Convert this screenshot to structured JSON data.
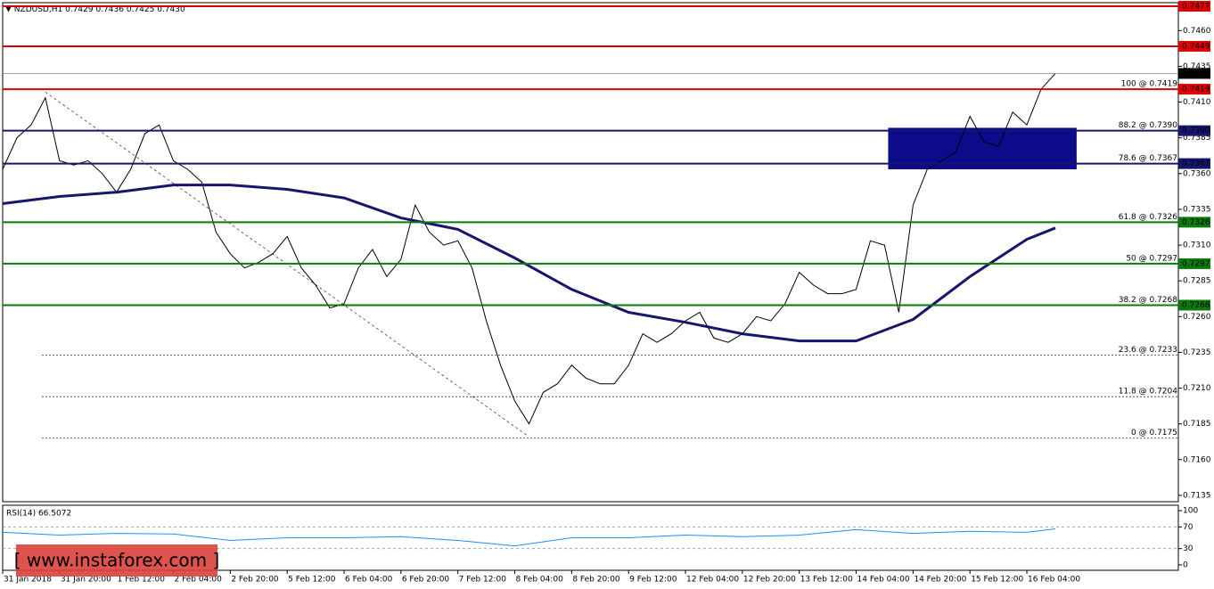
{
  "chart_data": [
    {
      "type": "line",
      "header": [
        "NZDUSD,H1",
        "0.7429",
        "0.7436",
        "0.7425",
        "0.7430"
      ],
      "xlim": [
        0,
        330.6
      ],
      "ylim": [
        0.71306,
        0.74795
      ],
      "xticks": [
        {
          "value": 0,
          "label": "31 Jan 2018"
        },
        {
          "value": 16,
          "label": "31 Jan 20:00"
        },
        {
          "value": 32,
          "label": "1 Feb 12:00"
        },
        {
          "value": 48,
          "label": "2 Feb 04:00"
        },
        {
          "value": 64,
          "label": "2 Feb 20:00"
        },
        {
          "value": 80,
          "label": "5 Feb 12:00"
        },
        {
          "value": 96,
          "label": "6 Feb 04:00"
        },
        {
          "value": 112,
          "label": "6 Feb 20:00"
        },
        {
          "value": 128,
          "label": "7 Feb 12:00"
        },
        {
          "value": 144,
          "label": "8 Feb 04:00"
        },
        {
          "value": 160,
          "label": "8 Feb 20:00"
        },
        {
          "value": 176,
          "label": "9 Feb 12:00"
        },
        {
          "value": 192,
          "label": "12 Feb 04:00"
        },
        {
          "value": 208,
          "label": "12 Feb 20:00"
        },
        {
          "value": 224,
          "label": "13 Feb 12:00"
        },
        {
          "value": 240,
          "label": "14 Feb 04:00"
        },
        {
          "value": 256,
          "label": "14 Feb 20:00"
        },
        {
          "value": 272,
          "label": "15 Feb 12:00"
        },
        {
          "value": 288,
          "label": "16 Feb 04:00"
        }
      ],
      "yticks": [
        {
          "value": 0.746,
          "label": "0.7460"
        },
        {
          "value": 0.7435,
          "label": "0.7435"
        },
        {
          "value": 0.741,
          "label": "0.7410"
        },
        {
          "value": 0.7385,
          "label": "0.7385"
        },
        {
          "value": 0.736,
          "label": "0.7360"
        },
        {
          "value": 0.7335,
          "label": "0.7335"
        },
        {
          "value": 0.731,
          "label": "0.7310"
        },
        {
          "value": 0.7285,
          "label": "0.7285"
        },
        {
          "value": 0.726,
          "label": "0.7260"
        },
        {
          "value": 0.7235,
          "label": "0.7235"
        },
        {
          "value": 0.721,
          "label": "0.7210"
        },
        {
          "value": 0.7185,
          "label": "0.7185"
        },
        {
          "value": 0.716,
          "label": "0.7160"
        },
        {
          "value": 0.7135,
          "label": "0.7135"
        }
      ],
      "series": [
        {
          "color": "#000000",
          "x": [
            0,
            4,
            8,
            12,
            16,
            20,
            24,
            28,
            32,
            36,
            40,
            44,
            48,
            52,
            56,
            60,
            64,
            68,
            72,
            76,
            80,
            84,
            88,
            92,
            96,
            100,
            104,
            108,
            112,
            116,
            120,
            124,
            128,
            132,
            136,
            140,
            144,
            148,
            152,
            156,
            160,
            164,
            168,
            172,
            176,
            180,
            184,
            188,
            192,
            196,
            200,
            204,
            208,
            212,
            216,
            220,
            224,
            228,
            232,
            236,
            240,
            244,
            248,
            252,
            256,
            260,
            264,
            268,
            272,
            276,
            280,
            284,
            288,
            292,
            296
          ],
          "values": [
            0.7363,
            0.7385,
            0.7394,
            0.7413,
            0.7369,
            0.7366,
            0.7369,
            0.736,
            0.7347,
            0.7363,
            0.7388,
            0.7394,
            0.7369,
            0.7363,
            0.7354,
            0.7319,
            0.7304,
            0.7294,
            0.7298,
            0.7304,
            0.7316,
            0.7294,
            0.7282,
            0.7266,
            0.7269,
            0.7294,
            0.7307,
            0.7288,
            0.73,
            0.7338,
            0.7319,
            0.731,
            0.7313,
            0.7294,
            0.7257,
            0.7226,
            0.7201,
            0.7185,
            0.7207,
            0.7213,
            0.7226,
            0.7217,
            0.7213,
            0.7213,
            0.7226,
            0.7248,
            0.7242,
            0.7248,
            0.7257,
            0.7263,
            0.7245,
            0.7242,
            0.7248,
            0.726,
            0.7257,
            0.7269,
            0.7291,
            0.7282,
            0.7276,
            0.7276,
            0.7279,
            0.7313,
            0.731,
            0.7263,
            0.7338,
            0.7363,
            0.7369,
            0.7375,
            0.74,
            0.7382,
            0.7379,
            0.7403,
            0.7394,
            0.7419,
            0.743
          ]
        },
        {
          "color": "#16166e",
          "x": [
            0,
            16,
            32,
            48,
            64,
            80,
            96,
            112,
            128,
            144,
            160,
            176,
            192,
            208,
            224,
            240,
            256,
            272,
            288,
            296
          ],
          "values": [
            0.7339,
            0.7344,
            0.7347,
            0.7352,
            0.7352,
            0.7349,
            0.7343,
            0.7329,
            0.7321,
            0.7301,
            0.7279,
            0.7263,
            0.7256,
            0.7248,
            0.7243,
            0.7243,
            0.7258,
            0.7288,
            0.7314,
            0.7322
          ]
        }
      ],
      "levels": [
        {
          "value": 0.7477,
          "label": "0.7477",
          "color": "#e00000"
        },
        {
          "value": 0.7449,
          "label": "0.7449",
          "color": "#e00000"
        },
        {
          "value": 0.743,
          "label": "0.7430",
          "color": "#000000"
        },
        {
          "value": 0.7419,
          "label": "0.7419",
          "color": "#e00000",
          "fib": "100 @ 0.7419"
        },
        {
          "value": 0.739,
          "label": "0.7390",
          "color": "#16166e",
          "fib": "88.2 @ 0.7390"
        },
        {
          "value": 0.7367,
          "label": "0.7367",
          "color": "#16166e",
          "fib": "78.6 @ 0.7367"
        },
        {
          "value": 0.7326,
          "label": "0.7326",
          "color": "#0a7a0a",
          "fib": "61.8 @ 0.7326"
        },
        {
          "value": 0.7297,
          "label": "0.7297",
          "color": "#0a7a0a",
          "fib": "50 @ 0.7297"
        },
        {
          "value": 0.7268,
          "label": "0.7268",
          "color": "#0a7a0a",
          "fib": "38.2 @ 0.7268"
        }
      ],
      "dotted_levels": [
        {
          "value": 0.7233,
          "fib": "23.6 @ 0.7233"
        },
        {
          "value": 0.7204,
          "fib": "11.8 @ 0.7204"
        },
        {
          "value": 0.7175,
          "fib": "0 @ 0.7175"
        }
      ],
      "zone": {
        "x": [
          249,
          302
        ],
        "y": [
          0.7363,
          0.7392
        ],
        "color": "#0c0c8a"
      },
      "trendline": {
        "x": [
          12,
          148
        ],
        "y": [
          0.7417,
          0.7176
        ]
      },
      "watermark": "[ www.instaforex.com ]"
    },
    {
      "type": "line",
      "title": "RSI(14) 66.5072",
      "xlim": [
        0,
        330.6
      ],
      "ylim": [
        -10,
        110
      ],
      "yticks": [
        100,
        70,
        30,
        0
      ],
      "dashed": [
        70,
        30
      ],
      "series": [
        {
          "color": "#1e90ff",
          "x": [
            0,
            16,
            32,
            48,
            64,
            80,
            96,
            112,
            128,
            144,
            160,
            176,
            192,
            208,
            224,
            240,
            256,
            272,
            288,
            296
          ],
          "values": [
            60,
            55,
            58,
            57,
            45,
            50,
            50,
            52,
            45,
            35,
            50,
            50,
            55,
            52,
            55,
            65,
            58,
            62,
            60,
            66.5072
          ]
        }
      ]
    }
  ]
}
